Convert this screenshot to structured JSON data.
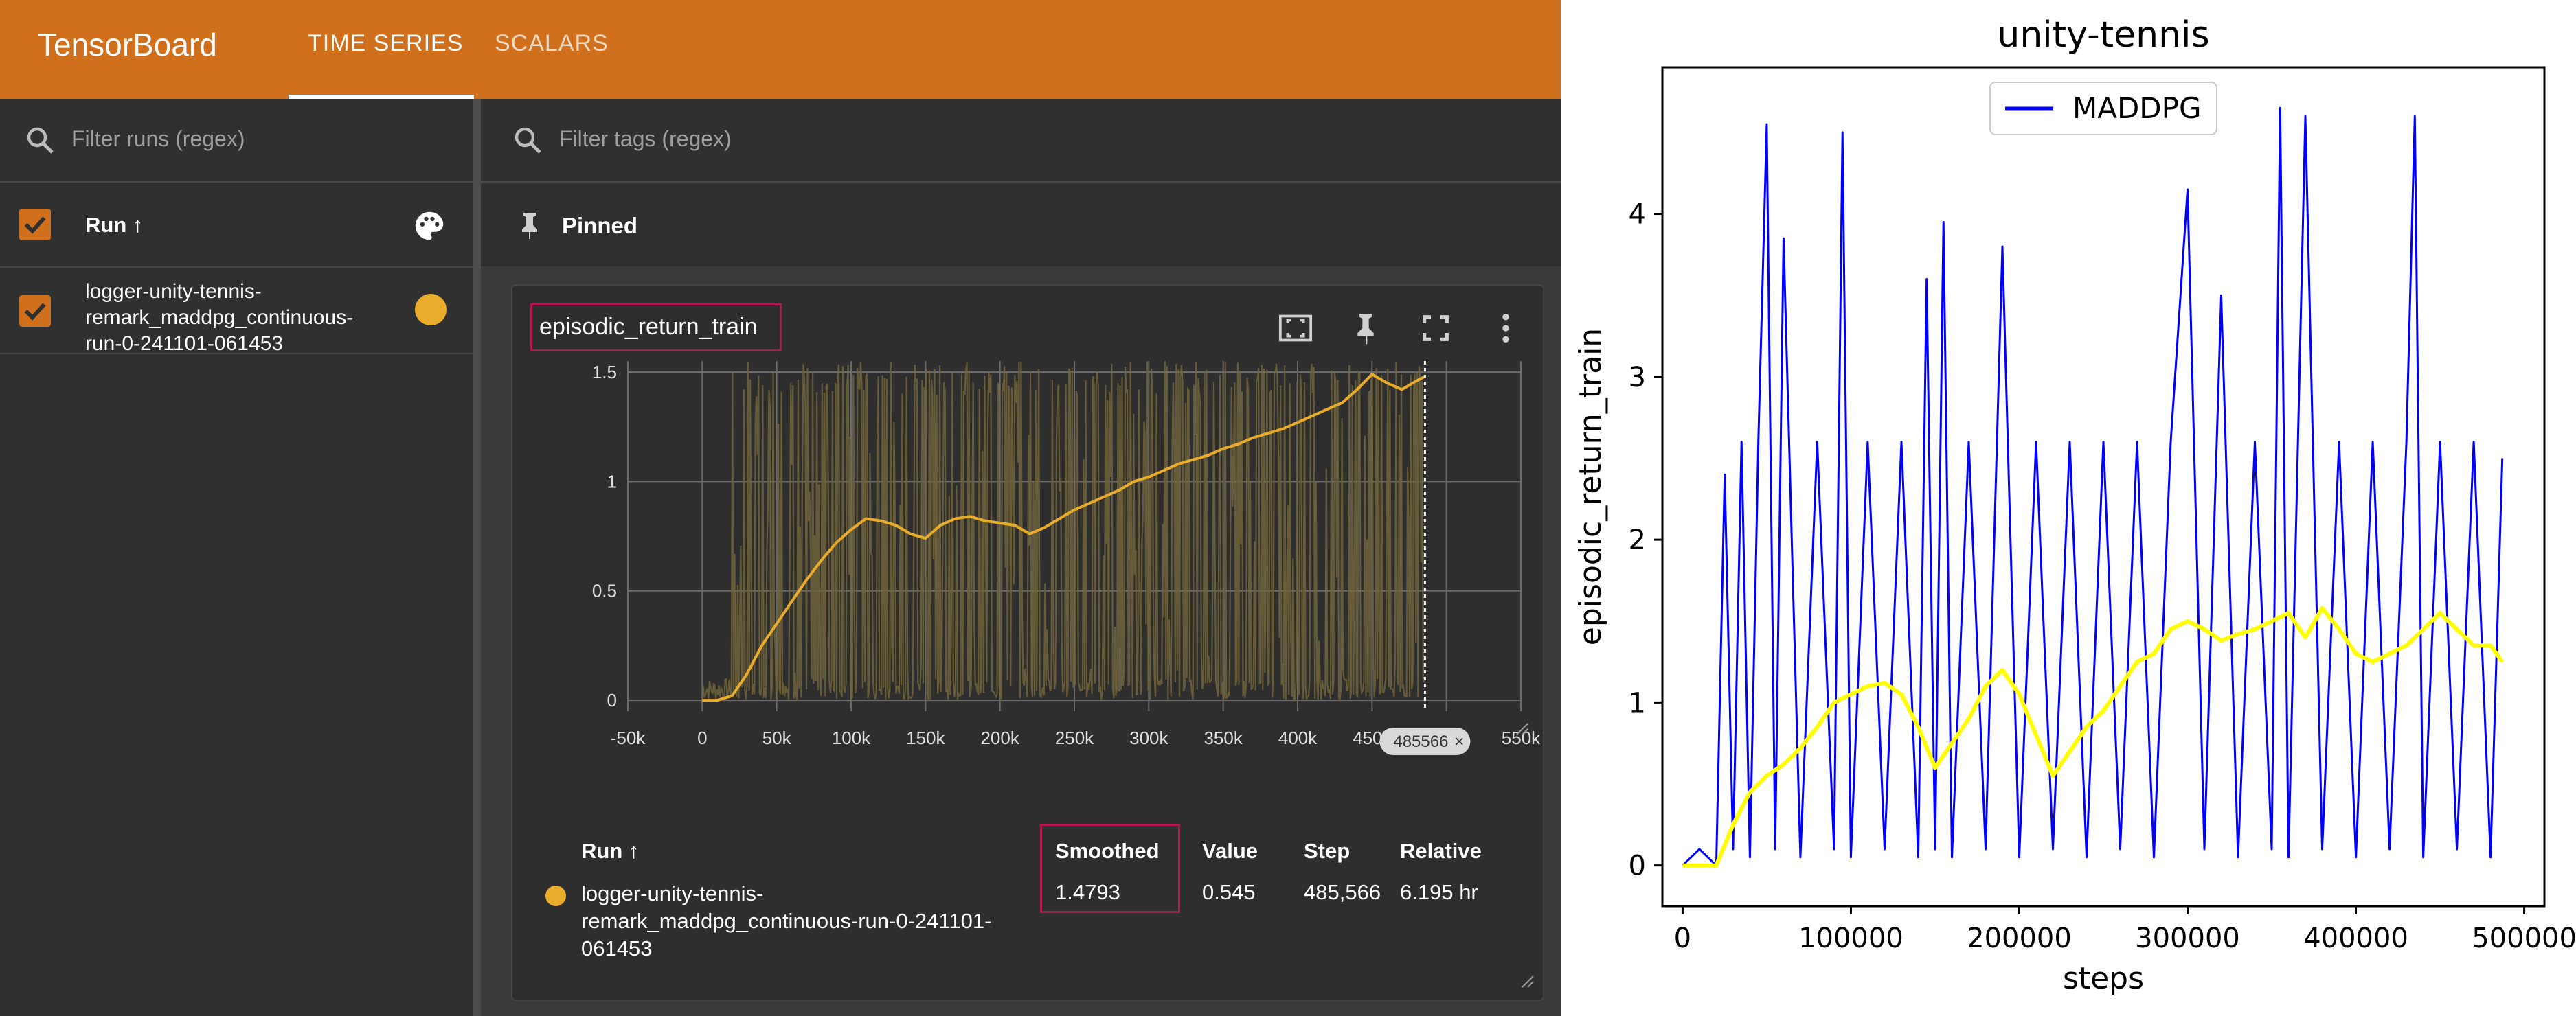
{
  "app": {
    "name": "TensorBoard",
    "tabs": [
      {
        "label": "TIME SERIES",
        "active": true
      },
      {
        "label": "SCALARS",
        "active": false
      }
    ]
  },
  "sidebar": {
    "filter_placeholder": "Filter runs (regex)",
    "column_header": "Run ↑",
    "runs": [
      {
        "name": "logger-unity-tennis-remark_maddpg_continuous-run-0-241101-061453",
        "lines": [
          "logger-unity-tennis-",
          "remark_maddpg_continuous-",
          "run-0-241101-061453"
        ],
        "color": "#e9ac2b",
        "checked": true
      }
    ]
  },
  "main": {
    "filter_placeholder": "Filter tags (regex)",
    "pinned_label": "Pinned",
    "card": {
      "title": "episodic_return_train",
      "hover_step_badge": "485566",
      "table": {
        "headers": {
          "run": "Run ↑",
          "smoothed": "Smoothed",
          "value": "Value",
          "step": "Step",
          "relative": "Relative"
        },
        "rows": [
          {
            "run_lines": [
              "logger-unity-tennis-",
              "remark_maddpg_continuous-run-0-241101-",
              "061453"
            ],
            "smoothed": "1.4793",
            "value": "0.545",
            "step": "485,566",
            "relative": "6.195 hr"
          }
        ]
      }
    }
  },
  "tb_chart_data": {
    "type": "line",
    "x_tick_labels": [
      "-50k",
      "0",
      "50k",
      "100k",
      "150k",
      "200k",
      "250k",
      "300k",
      "350k",
      "400k",
      "450k",
      "500k",
      "550k"
    ],
    "y_tick_labels": [
      "0",
      "0.5",
      "1",
      "1.5"
    ],
    "xlim": [
      -50000,
      550000
    ],
    "ylim": [
      -0.05,
      1.55
    ],
    "smoothed": {
      "color": "#e9ac2b",
      "x": [
        0,
        10000,
        20000,
        30000,
        40000,
        50000,
        60000,
        70000,
        80000,
        90000,
        100000,
        110000,
        120000,
        130000,
        140000,
        150000,
        160000,
        170000,
        180000,
        190000,
        200000,
        210000,
        220000,
        230000,
        240000,
        250000,
        260000,
        270000,
        280000,
        290000,
        300000,
        310000,
        320000,
        330000,
        340000,
        350000,
        360000,
        370000,
        380000,
        390000,
        400000,
        410000,
        420000,
        430000,
        440000,
        450000,
        460000,
        470000,
        480000,
        485566
      ],
      "y": [
        0,
        0,
        0.02,
        0.12,
        0.25,
        0.35,
        0.45,
        0.55,
        0.64,
        0.72,
        0.78,
        0.83,
        0.82,
        0.8,
        0.76,
        0.74,
        0.8,
        0.83,
        0.84,
        0.82,
        0.81,
        0.8,
        0.76,
        0.79,
        0.83,
        0.87,
        0.9,
        0.93,
        0.96,
        1.0,
        1.02,
        1.05,
        1.08,
        1.1,
        1.12,
        1.15,
        1.17,
        1.2,
        1.22,
        1.24,
        1.27,
        1.3,
        1.33,
        1.36,
        1.42,
        1.49,
        1.45,
        1.42,
        1.46,
        1.48
      ]
    },
    "raw_color": "#6f6339",
    "hover_x": 485566
  },
  "chart_data": {
    "type": "line",
    "title": "unity-tennis",
    "xlabel": "steps",
    "ylabel": "episodic_return_train",
    "xlim": [
      -12000,
      512000
    ],
    "ylim": [
      -0.25,
      4.9
    ],
    "x_ticks": [
      0,
      100000,
      200000,
      300000,
      400000,
      500000
    ],
    "y_ticks": [
      0,
      1,
      2,
      3,
      4
    ],
    "legend": {
      "position": "top-center"
    },
    "series": [
      {
        "name": "MADDPG",
        "color": "#0000ff",
        "x": [
          0,
          10000,
          20000,
          25000,
          30000,
          35000,
          40000,
          45000,
          50000,
          55000,
          60000,
          70000,
          80000,
          90000,
          95000,
          100000,
          110000,
          120000,
          130000,
          140000,
          145000,
          150000,
          155000,
          160000,
          170000,
          180000,
          190000,
          200000,
          210000,
          220000,
          230000,
          240000,
          250000,
          260000,
          270000,
          280000,
          290000,
          300000,
          310000,
          320000,
          330000,
          340000,
          350000,
          355000,
          360000,
          370000,
          380000,
          390000,
          400000,
          410000,
          420000,
          430000,
          435000,
          440000,
          450000,
          460000,
          470000,
          480000,
          487000
        ],
        "y": [
          0,
          0.1,
          0,
          2.4,
          0.1,
          2.6,
          0.05,
          2.6,
          4.55,
          0.1,
          3.85,
          0.05,
          2.6,
          0.1,
          4.5,
          0.05,
          2.6,
          0.1,
          2.6,
          0.05,
          3.6,
          0.1,
          3.95,
          0.05,
          2.6,
          0.1,
          3.8,
          0.05,
          2.6,
          0.1,
          2.6,
          0.05,
          2.6,
          0.1,
          2.6,
          0.05,
          2.6,
          4.15,
          0.1,
          3.5,
          0.05,
          2.6,
          0.1,
          4.65,
          0.05,
          4.6,
          0.1,
          2.6,
          0.05,
          2.6,
          0.1,
          2.6,
          4.6,
          0.05,
          2.6,
          0.1,
          2.6,
          0.05,
          2.5
        ]
      },
      {
        "name": "",
        "color": "#ffff00",
        "x": [
          0,
          10000,
          20000,
          30000,
          40000,
          50000,
          60000,
          70000,
          80000,
          90000,
          100000,
          110000,
          120000,
          130000,
          140000,
          150000,
          160000,
          170000,
          180000,
          190000,
          200000,
          210000,
          220000,
          230000,
          240000,
          250000,
          260000,
          270000,
          280000,
          290000,
          300000,
          310000,
          320000,
          330000,
          340000,
          350000,
          360000,
          370000,
          380000,
          390000,
          400000,
          410000,
          420000,
          430000,
          440000,
          450000,
          460000,
          470000,
          480000,
          487000
        ],
        "y": [
          0,
          0,
          0,
          0.25,
          0.45,
          0.55,
          0.62,
          0.72,
          0.85,
          1.0,
          1.05,
          1.1,
          1.12,
          1.05,
          0.85,
          0.6,
          0.75,
          0.9,
          1.1,
          1.2,
          1.05,
          0.8,
          0.55,
          0.7,
          0.85,
          0.95,
          1.1,
          1.25,
          1.3,
          1.45,
          1.5,
          1.45,
          1.38,
          1.42,
          1.45,
          1.5,
          1.55,
          1.4,
          1.58,
          1.45,
          1.3,
          1.25,
          1.3,
          1.35,
          1.45,
          1.55,
          1.45,
          1.35,
          1.35,
          1.25
        ]
      }
    ]
  }
}
